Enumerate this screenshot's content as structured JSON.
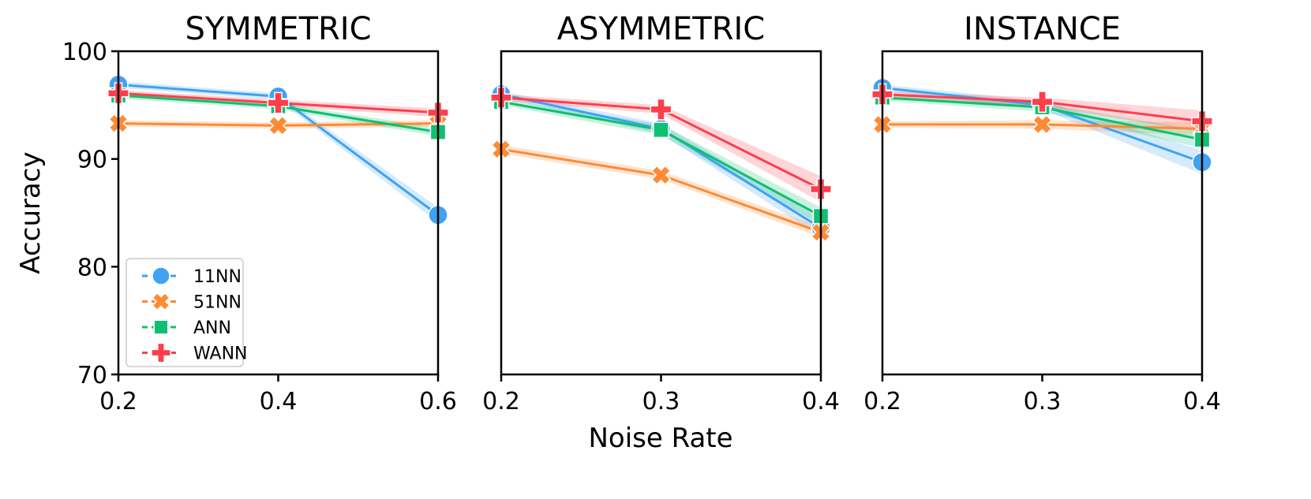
{
  "chart_data": {
    "type": "line",
    "ylabel": "Accuracy",
    "xlabel": "Noise Rate",
    "ylim": [
      70,
      100
    ],
    "yticks": [
      70,
      80,
      90,
      100
    ],
    "grid": false,
    "legend_placement": "lower-left of first panel",
    "series_styles": [
      {
        "name": "11NN",
        "color": "#3fa2f2",
        "marker": "circle"
      },
      {
        "name": "51NN",
        "color": "#ff8a33",
        "marker": "x"
      },
      {
        "name": "ANN",
        "color": "#0ec072",
        "marker": "square"
      },
      {
        "name": "WANN",
        "color": "#fd3f4c",
        "marker": "plus"
      }
    ],
    "panels": [
      {
        "title": "SYMMETRIC",
        "x": [
          0.2,
          0.4,
          0.6
        ],
        "xticks": [
          "0.2",
          "0.4",
          "0.6"
        ],
        "series": [
          {
            "name": "11NN",
            "values": [
              96.9,
              95.8,
              84.8
            ],
            "ci": [
              0.3,
              0.3,
              0.7
            ]
          },
          {
            "name": "51NN",
            "values": [
              93.3,
              93.1,
              93.3
            ],
            "ci": [
              0.3,
              0.3,
              0.3
            ]
          },
          {
            "name": "ANN",
            "values": [
              95.9,
              94.9,
              92.5
            ],
            "ci": [
              0.3,
              0.3,
              0.4
            ]
          },
          {
            "name": "WANN",
            "values": [
              96.1,
              95.2,
              94.3
            ],
            "ci": [
              0.3,
              0.3,
              0.4
            ]
          }
        ]
      },
      {
        "title": "ASYMMETRIC",
        "x": [
          0.2,
          0.3,
          0.4
        ],
        "xticks": [
          "0.2",
          "0.3",
          "0.4"
        ],
        "series": [
          {
            "name": "11NN",
            "values": [
              96.0,
              92.8,
              83.6
            ],
            "ci": [
              0.3,
              0.5,
              0.8
            ]
          },
          {
            "name": "51NN",
            "values": [
              90.9,
              88.5,
              83.2
            ],
            "ci": [
              0.4,
              0.4,
              0.5
            ]
          },
          {
            "name": "ANN",
            "values": [
              95.3,
              92.7,
              84.7
            ],
            "ci": [
              0.3,
              0.5,
              0.8
            ]
          },
          {
            "name": "WANN",
            "values": [
              95.7,
              94.6,
              87.2
            ],
            "ci": [
              0.3,
              0.4,
              1.2
            ]
          }
        ]
      },
      {
        "title": "INSTANCE",
        "x": [
          0.2,
          0.3,
          0.4
        ],
        "xticks": [
          "0.2",
          "0.3",
          "0.4"
        ],
        "series": [
          {
            "name": "11NN",
            "values": [
              96.6,
              95.0,
              89.7
            ],
            "ci": [
              0.3,
              0.4,
              1.1
            ]
          },
          {
            "name": "51NN",
            "values": [
              93.2,
              93.2,
              92.8
            ],
            "ci": [
              0.3,
              0.4,
              0.6
            ]
          },
          {
            "name": "ANN",
            "values": [
              95.7,
              94.8,
              91.8
            ],
            "ci": [
              0.3,
              0.4,
              0.8
            ]
          },
          {
            "name": "WANN",
            "values": [
              96.0,
              95.3,
              93.5
            ],
            "ci": [
              0.3,
              0.4,
              1.0
            ]
          }
        ]
      }
    ]
  }
}
